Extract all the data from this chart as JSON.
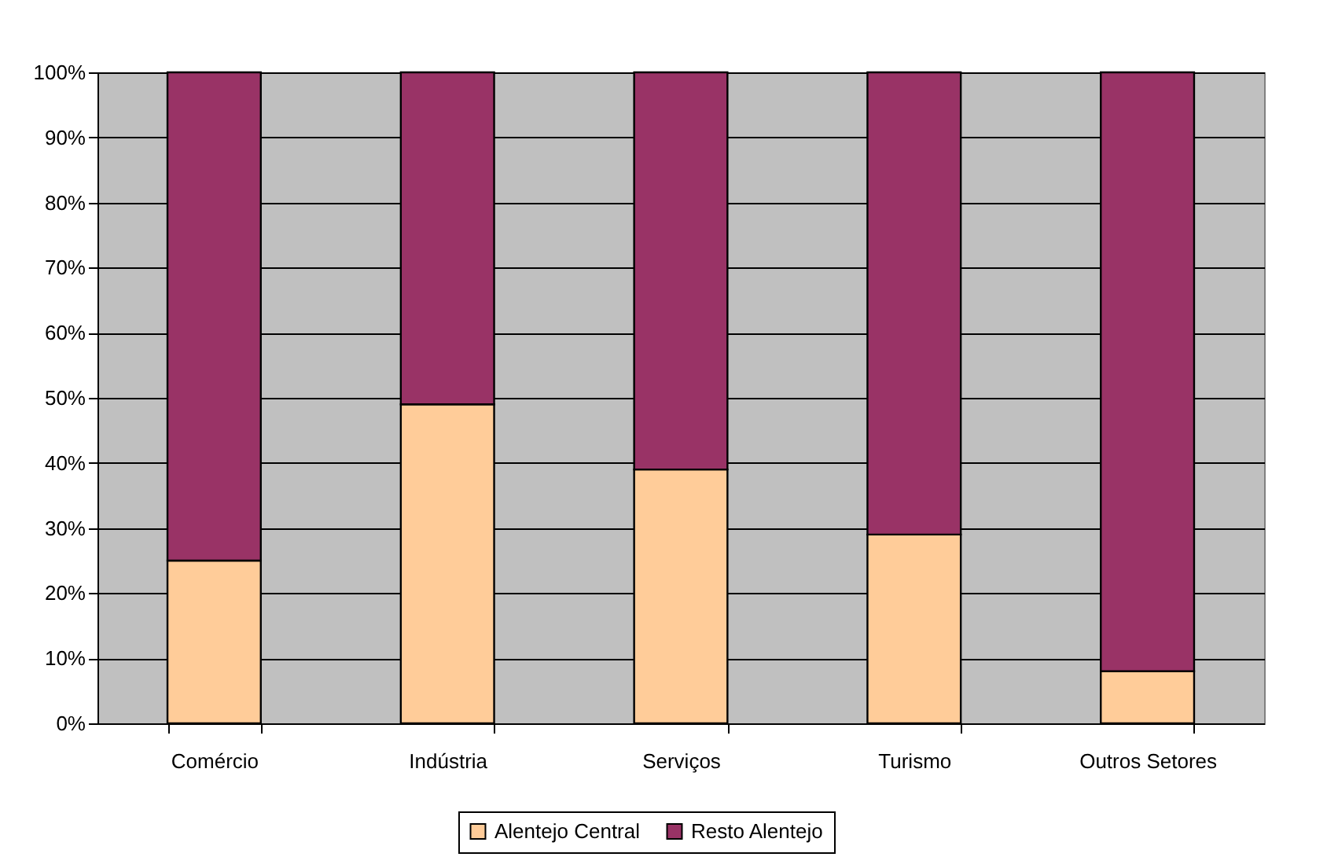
{
  "chart_data": {
    "type": "bar",
    "stacked": true,
    "categories": [
      "Comércio",
      "Indústria",
      "Serviços",
      "Turismo",
      "Outros Setores"
    ],
    "series": [
      {
        "name": "Alentejo Central",
        "color": "#ffcc99",
        "values": [
          25,
          49,
          39,
          29,
          8
        ]
      },
      {
        "name": "Resto Alentejo",
        "color": "#993366",
        "values": [
          75,
          51,
          61,
          71,
          92
        ]
      }
    ],
    "ylim": [
      0,
      100
    ],
    "yticks": [
      {
        "value": 0,
        "label": "0%"
      },
      {
        "value": 10,
        "label": "10%"
      },
      {
        "value": 20,
        "label": "20%"
      },
      {
        "value": 30,
        "label": "30%"
      },
      {
        "value": 40,
        "label": "40%"
      },
      {
        "value": 50,
        "label": "50%"
      },
      {
        "value": 60,
        "label": "60%"
      },
      {
        "value": 70,
        "label": "70%"
      },
      {
        "value": 80,
        "label": "80%"
      },
      {
        "value": 90,
        "label": "90%"
      },
      {
        "value": 100,
        "label": "100%"
      }
    ],
    "grid": "y",
    "legend": "bottom"
  }
}
